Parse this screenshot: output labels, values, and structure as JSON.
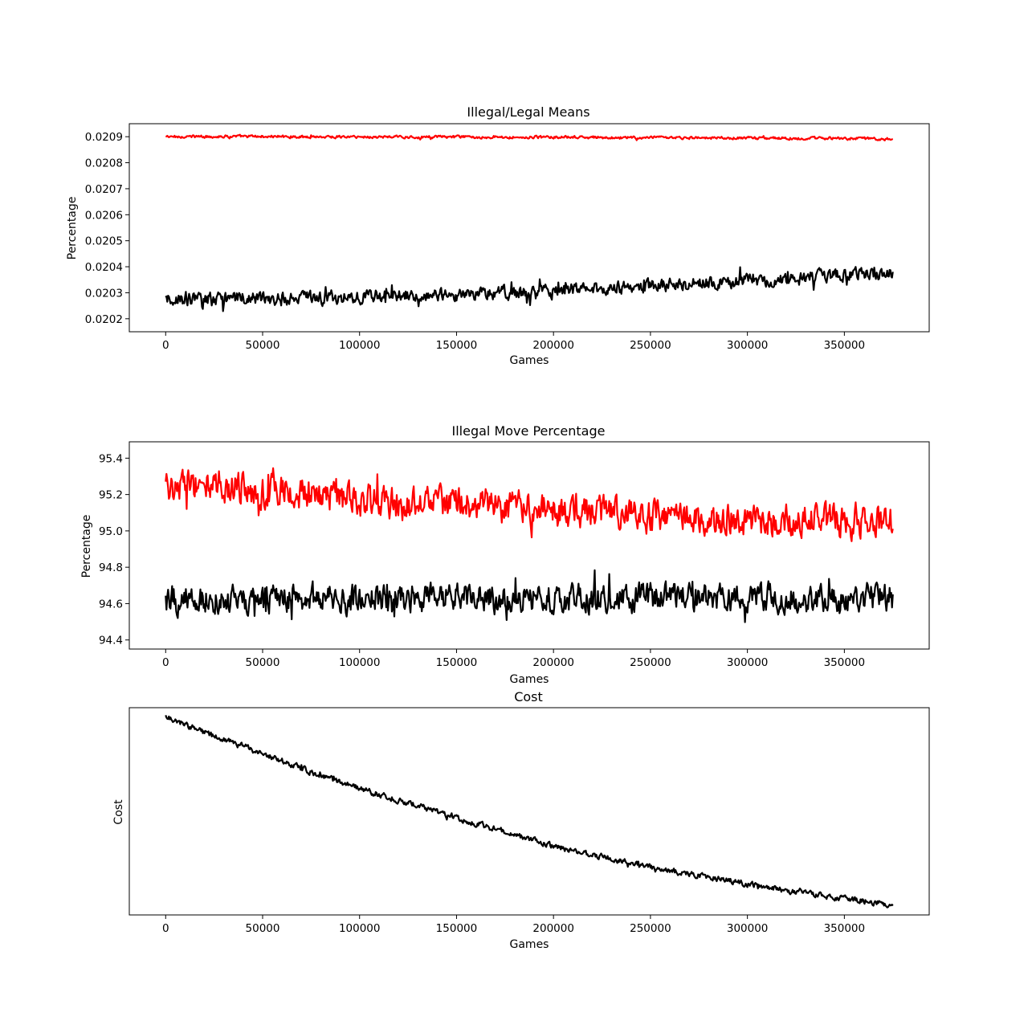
{
  "chart_data": [
    {
      "type": "line",
      "title": "Illegal/Legal Means",
      "xlabel": "Games",
      "ylabel": "Percentage",
      "xlim": [
        -18750,
        393750
      ],
      "ylim": [
        0.02015,
        0.02095
      ],
      "xticks": [
        0,
        50000,
        100000,
        150000,
        200000,
        250000,
        300000,
        350000
      ],
      "yticks": [
        0.0202,
        0.0203,
        0.0204,
        0.0205,
        0.0206,
        0.0207,
        0.0208,
        0.0209
      ],
      "ytick_labels": [
        "0.0202",
        "0.0203",
        "0.0204",
        "0.0205",
        "0.0206",
        "0.0207",
        "0.0208",
        "0.0209"
      ],
      "grid": false,
      "series": [
        {
          "color": "#ff0000",
          "x": [
            0,
            25000,
            50000,
            75000,
            100000,
            125000,
            150000,
            175000,
            200000,
            225000,
            250000,
            275000,
            300000,
            325000,
            350000,
            375000
          ],
          "y": [
            0.0209,
            0.020901,
            0.020901,
            0.0209,
            0.020899,
            0.020899,
            0.020899,
            0.020898,
            0.020898,
            0.020897,
            0.020896,
            0.020895,
            0.020895,
            0.020894,
            0.020893,
            0.020892
          ],
          "noise": 3.5e-06,
          "freq": 2.4
        },
        {
          "color": "#000000",
          "x": [
            0,
            25000,
            50000,
            75000,
            100000,
            125000,
            150000,
            175000,
            200000,
            225000,
            250000,
            275000,
            300000,
            325000,
            350000,
            375000
          ],
          "y": [
            0.020275,
            0.020275,
            0.020278,
            0.02028,
            0.020285,
            0.02029,
            0.020295,
            0.0203,
            0.020305,
            0.020315,
            0.020325,
            0.020335,
            0.020345,
            0.020355,
            0.020365,
            0.020375
          ],
          "noise": 3e-05,
          "freq": 1.3
        }
      ]
    },
    {
      "type": "line",
      "title": "Illegal Move Percentage",
      "xlabel": "Games",
      "ylabel": "Percentage",
      "xlim": [
        -18750,
        393750
      ],
      "ylim": [
        94.35,
        95.49
      ],
      "xticks": [
        0,
        50000,
        100000,
        150000,
        200000,
        250000,
        300000,
        350000
      ],
      "yticks": [
        94.4,
        94.6,
        94.8,
        95.0,
        95.2,
        95.4
      ],
      "ytick_labels": [
        "94.4",
        "94.6",
        "94.8",
        "95.0",
        "95.2",
        "95.4"
      ],
      "grid": false,
      "series": [
        {
          "color": "#ff0000",
          "x": [
            0,
            25000,
            50000,
            75000,
            100000,
            125000,
            150000,
            175000,
            200000,
            225000,
            250000,
            275000,
            300000,
            325000,
            350000,
            375000
          ],
          "y": [
            95.25,
            95.25,
            95.22,
            95.2,
            95.17,
            95.15,
            95.15,
            95.13,
            95.1,
            95.1,
            95.08,
            95.07,
            95.06,
            95.06,
            95.05,
            95.04
          ],
          "noise": 0.085,
          "freq": 1.6
        },
        {
          "color": "#000000",
          "x": [
            0,
            25000,
            50000,
            75000,
            100000,
            125000,
            150000,
            175000,
            200000,
            225000,
            250000,
            275000,
            300000,
            325000,
            350000,
            375000
          ],
          "y": [
            94.62,
            94.62,
            94.63,
            94.63,
            94.62,
            94.63,
            94.63,
            94.63,
            94.63,
            94.63,
            94.63,
            94.63,
            94.63,
            94.63,
            94.63,
            94.63
          ],
          "noise": 0.075,
          "freq": 1.6
        }
      ]
    },
    {
      "type": "line",
      "title": "Cost",
      "xlabel": "Games",
      "ylabel": "Cost",
      "xlim": [
        -18750,
        393750
      ],
      "ylim": [
        0,
        1
      ],
      "xticks": [
        0,
        50000,
        100000,
        150000,
        200000,
        250000,
        300000,
        350000
      ],
      "yticks": [],
      "ytick_labels": [],
      "grid": false,
      "series": [
        {
          "color": "#000000",
          "x": [
            0,
            25000,
            50000,
            75000,
            100000,
            125000,
            150000,
            175000,
            200000,
            225000,
            250000,
            275000,
            300000,
            325000,
            350000,
            375000
          ],
          "y": [
            0.96,
            0.86,
            0.78,
            0.69,
            0.61,
            0.54,
            0.47,
            0.4,
            0.33,
            0.28,
            0.23,
            0.19,
            0.15,
            0.11,
            0.08,
            0.05
          ],
          "noise": 0.012,
          "freq": 1.8
        }
      ]
    }
  ]
}
